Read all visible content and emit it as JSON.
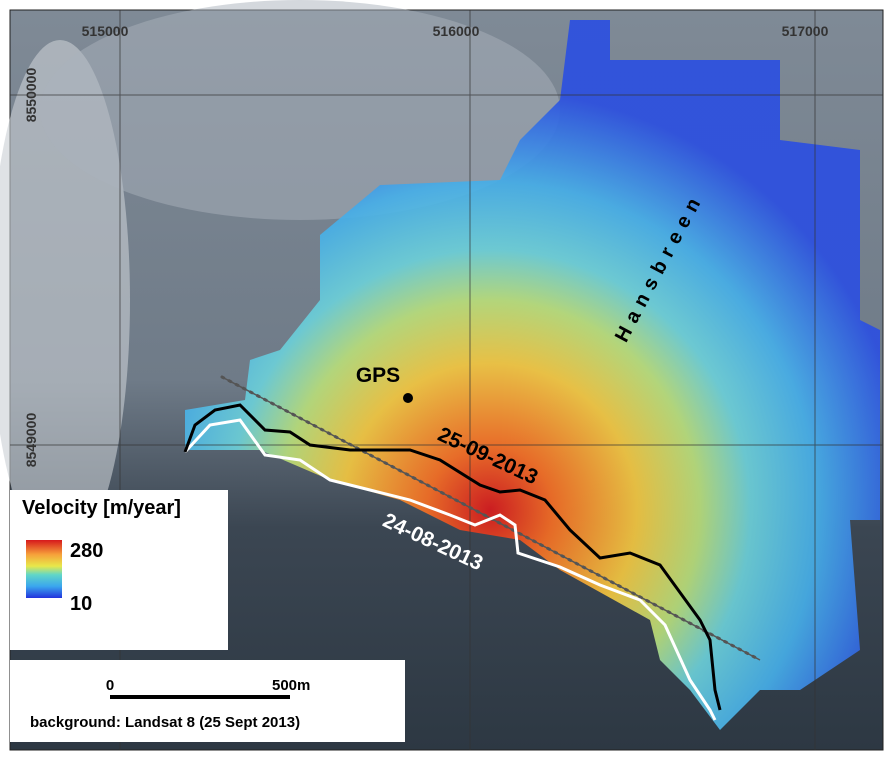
{
  "map": {
    "grid_labels": {
      "easting": [
        "515000",
        "516000",
        "517000"
      ],
      "northing": [
        "8550000",
        "8549000"
      ]
    },
    "glacier_name": "Hansbreen",
    "gps_label": "GPS",
    "front_lines": [
      {
        "label": "25-09-2013",
        "color": "#000000"
      },
      {
        "label": "24-08-2013",
        "color": "#ffffff"
      }
    ],
    "legend": {
      "title": "Velocity [m/year]",
      "max_label": "280",
      "min_label": "10"
    },
    "scale_bar": {
      "start_label": "0",
      "end_label": "500m"
    },
    "credit": "background: Landsat 8 (25 Sept 2013)"
  }
}
